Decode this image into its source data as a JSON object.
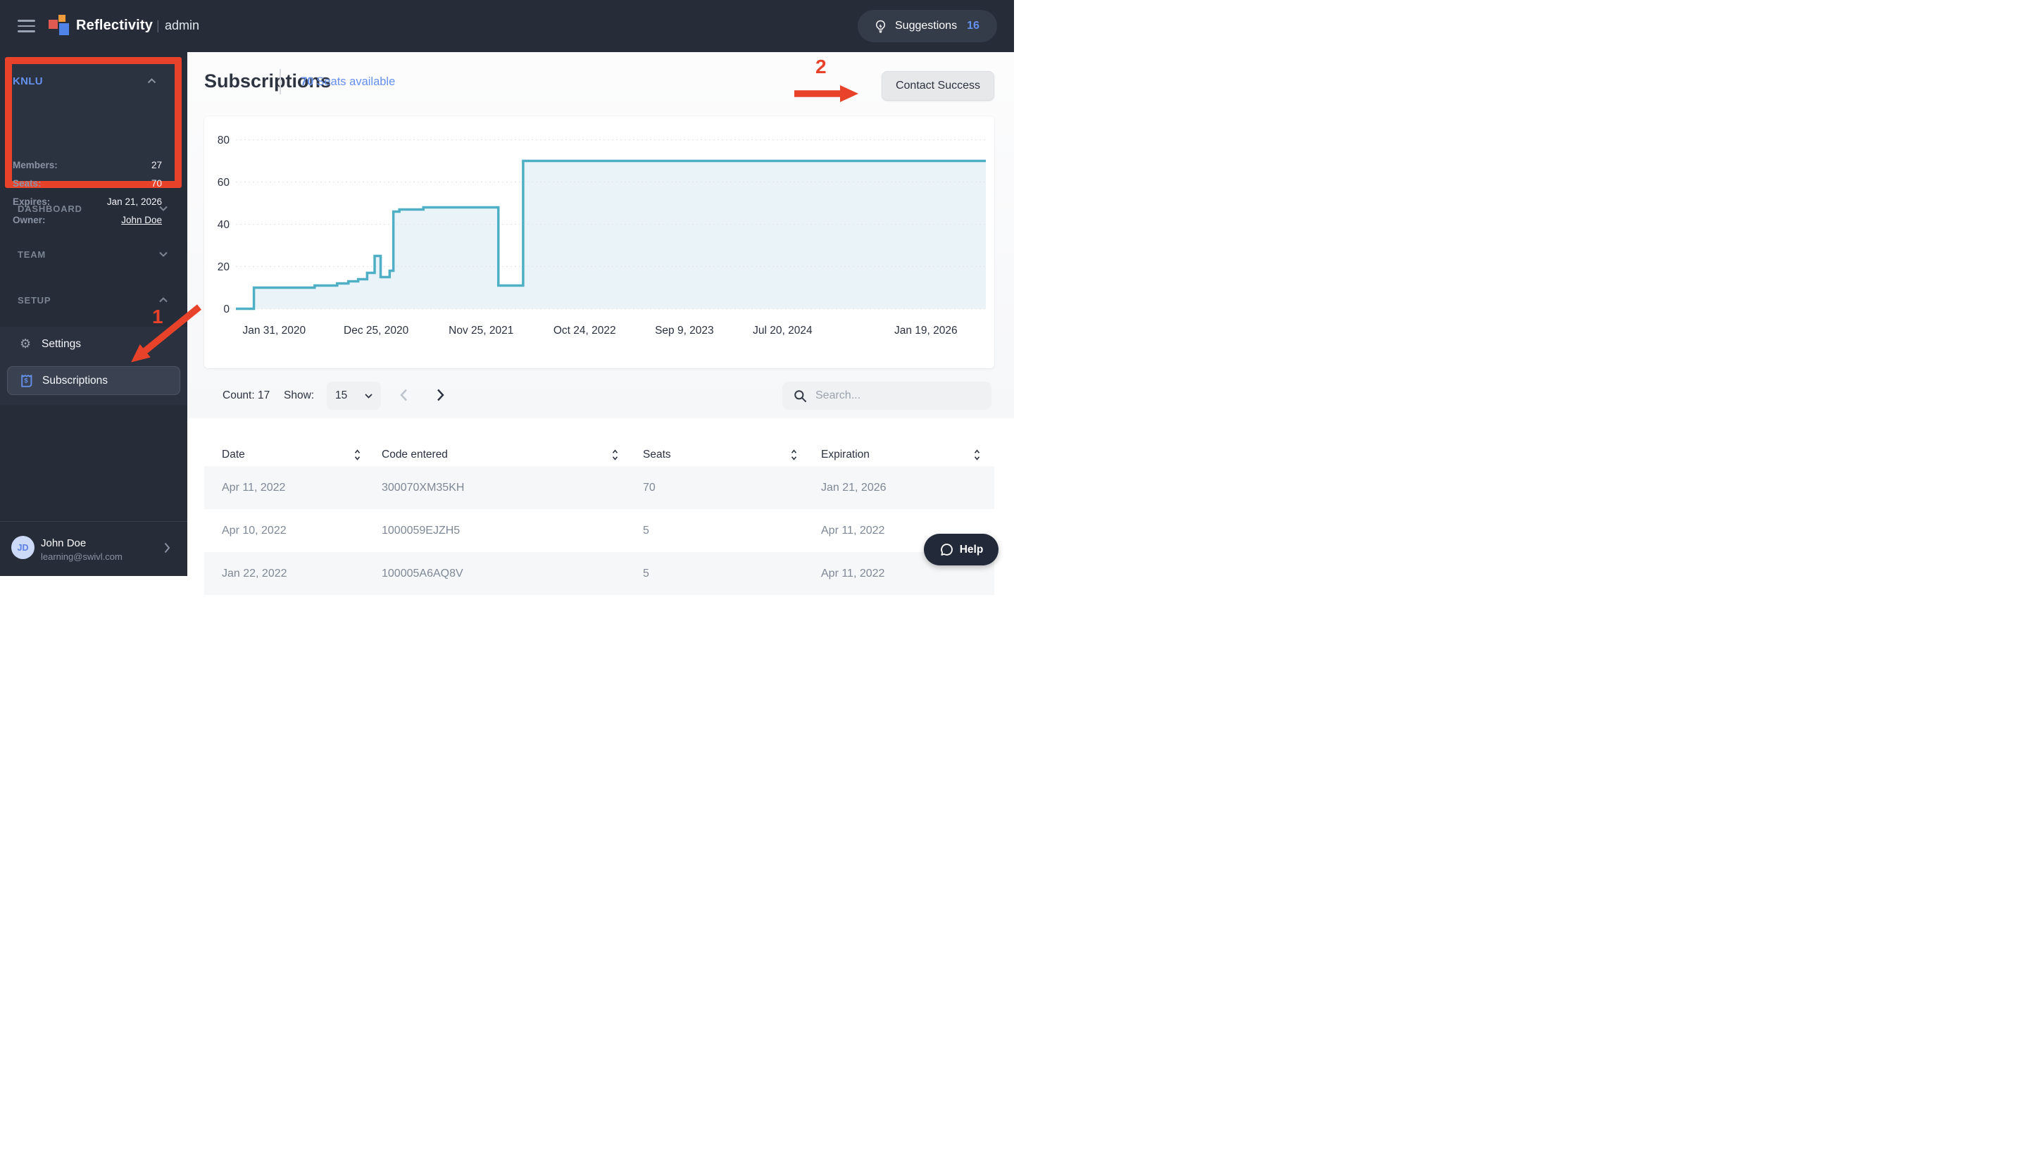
{
  "header": {
    "brand": "Reflectivity",
    "divider": "|",
    "app_area": "admin",
    "suggestions": {
      "label": "Suggestions",
      "count": "16"
    }
  },
  "sidebar": {
    "org_panel": {
      "name": "KNLU",
      "rows": [
        {
          "label": "Members:",
          "value": "27"
        },
        {
          "label": "Seats:",
          "value": "70"
        },
        {
          "label": "Expires:",
          "value": "Jan 21, 2026"
        },
        {
          "label": "Owner:",
          "value": "John Doe"
        }
      ]
    },
    "sections": [
      {
        "label": "DASHBOARD",
        "state": "collapsed"
      },
      {
        "label": "TEAM",
        "state": "collapsed"
      },
      {
        "label": "SETUP",
        "state": "expanded"
      }
    ],
    "setup_items": [
      {
        "label": "Settings",
        "icon": "gear-icon",
        "selected": false
      },
      {
        "label": "Subscriptions",
        "icon": "receipt-dollar-icon",
        "selected": true
      }
    ],
    "user": {
      "initials": "JD",
      "name": "John Doe",
      "email": "learning@swivl.com"
    }
  },
  "annotations": {
    "color": "#E8432A",
    "step1_label": "1",
    "step2_label": "2"
  },
  "main": {
    "title": "Subscriptions",
    "seats_badge": {
      "value": "70",
      "label": "Seats available"
    },
    "contact_button": "Contact Success",
    "controls": {
      "count": "Count: 17",
      "show_label": "Show:",
      "page_size": "15",
      "search_placeholder": "Search..."
    },
    "help_button": "Help"
  },
  "chart_data": {
    "type": "area",
    "series_name": "Seats",
    "line_color": "#4FB0C5",
    "fill_color": "#EAF3F8",
    "grid": "dashed-horizontal",
    "y_ticks": [
      0,
      20,
      40,
      60,
      80
    ],
    "ylim": [
      0,
      80
    ],
    "x_ticks": [
      {
        "label": "Jan 31, 2020",
        "f": 0.051
      },
      {
        "label": "Dec 25, 2020",
        "f": 0.187
      },
      {
        "label": "Nov 25, 2021",
        "f": 0.327
      },
      {
        "label": "Oct 24, 2022",
        "f": 0.465
      },
      {
        "label": "Sep 9, 2023",
        "f": 0.598
      },
      {
        "label": "Jul 20, 2024",
        "f": 0.729
      },
      {
        "label": "Jan 19, 2026",
        "f": 0.92
      }
    ],
    "points": [
      [
        0,
        0
      ],
      [
        0.024,
        0
      ],
      [
        0.024,
        10
      ],
      [
        0.105,
        10
      ],
      [
        0.105,
        11
      ],
      [
        0.135,
        11
      ],
      [
        0.135,
        12
      ],
      [
        0.15,
        12
      ],
      [
        0.15,
        13
      ],
      [
        0.163,
        13
      ],
      [
        0.163,
        14
      ],
      [
        0.175,
        14
      ],
      [
        0.175,
        17
      ],
      [
        0.185,
        17
      ],
      [
        0.185,
        25
      ],
      [
        0.193,
        25
      ],
      [
        0.193,
        15
      ],
      [
        0.205,
        15
      ],
      [
        0.205,
        18
      ],
      [
        0.21,
        18
      ],
      [
        0.21,
        46
      ],
      [
        0.218,
        46
      ],
      [
        0.218,
        47
      ],
      [
        0.25,
        47
      ],
      [
        0.25,
        48
      ],
      [
        0.35,
        48
      ],
      [
        0.35,
        11
      ],
      [
        0.383,
        11
      ],
      [
        0.383,
        70
      ],
      [
        1,
        70
      ]
    ]
  },
  "table": {
    "columns": [
      "Date",
      "Code entered",
      "Seats",
      "Expiration"
    ],
    "rows": [
      [
        "Apr 11, 2022",
        "300070XM35KH",
        "70",
        "Jan 21, 2026"
      ],
      [
        "Apr 10, 2022",
        "1000059EJZH5",
        "5",
        "Apr 11, 2022"
      ],
      [
        "Jan 22, 2022",
        "100005A6AQ8V",
        "5",
        "Apr 11, 2022"
      ]
    ]
  },
  "colors": {
    "accent_blue": "#6590EC",
    "annotation_red": "#E8432A",
    "chart_teal": "#4FB0C5",
    "sidebar_bg": "#262C38",
    "dark_text": "#2B3240"
  }
}
